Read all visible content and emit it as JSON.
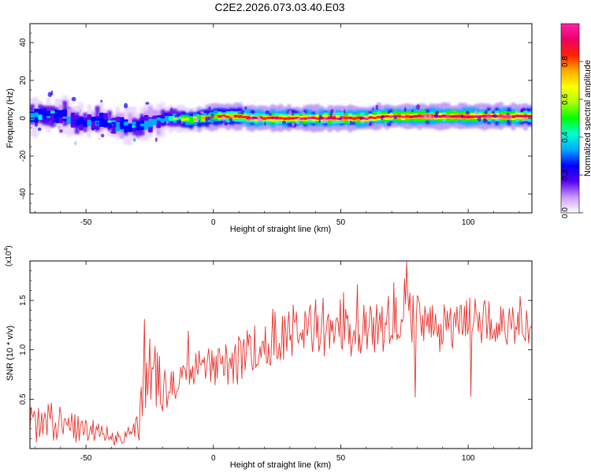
{
  "title": "C2E2.2026.073.03.40.E03",
  "chart_data": [
    {
      "type": "heatmap",
      "xlabel": "Height of straight line (km)",
      "ylabel": "Frequency (Hz)",
      "xlim": [
        -72,
        125
      ],
      "ylim": [
        -50,
        50
      ],
      "xticks": [
        -50,
        0,
        50,
        100
      ],
      "yticks": [
        -40,
        -20,
        0,
        20,
        40
      ],
      "colorbar": {
        "label": "Normalized spectral amplitude",
        "range": [
          0,
          1
        ],
        "ticks": [
          0.0,
          0.2,
          0.4,
          0.6,
          0.8
        ],
        "colors": [
          "#ffffff",
          "#cc99ff",
          "#5500ee",
          "#0000ff",
          "#00aaff",
          "#00ffd0",
          "#00ff00",
          "#aaff00",
          "#ffff00",
          "#ffaa00",
          "#ff2200",
          "#ee0066",
          "#ff22aa"
        ]
      },
      "ridge": {
        "x": [
          -72,
          -65,
          -60,
          -55,
          -50,
          -45,
          -40,
          -35,
          -30,
          -25,
          -20,
          -15,
          -10,
          -5,
          0,
          5,
          10,
          15,
          20,
          25,
          30,
          35,
          40,
          45,
          50,
          55,
          60,
          65,
          70,
          75,
          80,
          85,
          90,
          95,
          100,
          105,
          110,
          115,
          120,
          125
        ],
        "frequency": [
          1,
          2,
          2,
          -1,
          -2,
          -1,
          -3,
          -4,
          -4,
          -2,
          0,
          0,
          -1,
          0,
          1,
          1,
          1,
          0,
          0,
          0,
          0,
          0,
          0,
          0,
          0,
          0,
          0,
          1,
          1,
          1,
          1,
          1,
          1,
          1,
          1,
          1,
          1,
          1,
          1,
          1
        ],
        "amplitude": [
          0.45,
          0.45,
          0.4,
          0.38,
          0.35,
          0.35,
          0.4,
          0.4,
          0.38,
          0.45,
          0.5,
          0.6,
          0.7,
          0.7,
          0.75,
          0.8,
          0.85,
          0.9,
          0.88,
          0.88,
          0.9,
          0.9,
          0.9,
          0.92,
          0.92,
          0.9,
          0.9,
          0.92,
          0.95,
          0.95,
          0.95,
          0.95,
          0.95,
          0.96,
          0.97,
          0.96,
          0.96,
          0.95,
          0.9,
          0.88
        ]
      }
    },
    {
      "type": "line",
      "xlabel": "Height of straight line (km)",
      "ylabel": "SNR (10 * v/v)",
      "multiplier": "(x10",
      "multiplier_exponent": "4",
      "multiplier_close": ")",
      "xlim": [
        -72,
        125
      ],
      "ylim": [
        0,
        19000
      ],
      "xticks": [
        -50,
        0,
        50,
        100
      ],
      "yticks": [
        5000,
        10000,
        15000
      ],
      "ytick_labels": [
        "0.5",
        "1.0",
        "1.5"
      ],
      "color": "#e8332e",
      "series": [
        {
          "x": [
            -72,
            -65,
            -60,
            -55,
            -50,
            -45,
            -40,
            -35,
            -30,
            -28,
            -25,
            -22,
            -20,
            -15,
            -10,
            -5,
            0,
            5,
            10,
            15,
            20,
            25,
            30,
            35,
            40,
            45,
            50,
            55,
            60,
            65,
            70,
            75,
            80,
            85,
            90,
            95,
            100,
            105,
            110,
            115,
            120,
            125
          ],
          "y": [
            2300,
            2600,
            2700,
            2400,
            2000,
            1600,
            1200,
            1200,
            1800,
            4500,
            8000,
            7000,
            6000,
            6000,
            7500,
            8500,
            8000,
            8500,
            9000,
            9500,
            10500,
            11500,
            12000,
            12500,
            12500,
            12200,
            12200,
            12000,
            12200,
            12500,
            12800,
            13300,
            13000,
            12500,
            12500,
            12500,
            13000,
            12800,
            12800,
            12500,
            12500,
            12500
          ],
          "amp": [
            2000,
            2000,
            2000,
            1800,
            1500,
            1200,
            900,
            900,
            1500,
            3500,
            3500,
            3000,
            2500,
            2000,
            2000,
            2000,
            2000,
            2200,
            2500,
            2800,
            3000,
            3000,
            3000,
            3000,
            3000,
            3000,
            3000,
            3000,
            2800,
            2800,
            2800,
            2800,
            2800,
            2800,
            2800,
            2500,
            2500,
            2200,
            2200,
            2000,
            2000,
            2000
          ]
        }
      ],
      "spikes": [
        {
          "x": 75.8,
          "y": 18900
        },
        {
          "x": 75.2,
          "y": 17200
        },
        {
          "x": 51.0,
          "y": 15800
        },
        {
          "x": 71.0,
          "y": 16800
        },
        {
          "x": 56.5,
          "y": 16600
        },
        {
          "x": 120.5,
          "y": 15400
        },
        {
          "x": 79.3,
          "y": 5200
        },
        {
          "x": 101.0,
          "y": 5300
        },
        {
          "x": -27.0,
          "y": 13100
        },
        {
          "x": -10.0,
          "y": 11900
        }
      ]
    }
  ]
}
